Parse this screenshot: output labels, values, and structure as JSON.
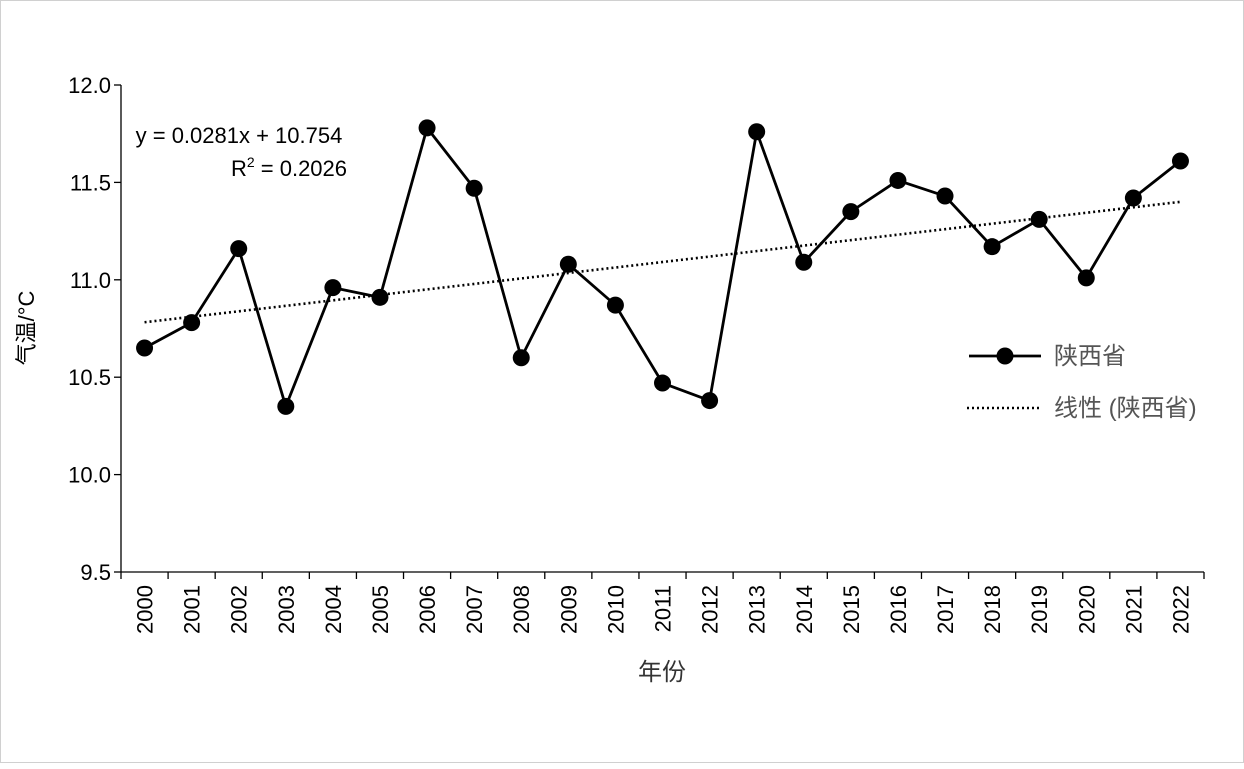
{
  "chart_data": {
    "type": "line",
    "title": "",
    "xlabel": "年份",
    "ylabel": "气温/°C",
    "ylim": [
      9.5,
      12.0
    ],
    "yticks": [
      "9.5",
      "10.0",
      "10.5",
      "11.0",
      "11.5",
      "12.0"
    ],
    "categories": [
      "2000",
      "2001",
      "2002",
      "2003",
      "2004",
      "2005",
      "2006",
      "2007",
      "2008",
      "2009",
      "2010",
      "2011",
      "2012",
      "2013",
      "2014",
      "2015",
      "2016",
      "2017",
      "2018",
      "2019",
      "2020",
      "2021",
      "2022"
    ],
    "series": [
      {
        "name": "陕西省",
        "values": [
          10.65,
          10.78,
          11.16,
          10.35,
          10.96,
          10.91,
          11.78,
          11.47,
          10.6,
          11.08,
          10.87,
          10.47,
          10.38,
          11.76,
          11.09,
          11.35,
          11.51,
          11.43,
          11.17,
          11.31,
          11.01,
          11.42,
          11.61
        ],
        "color": "#000000"
      }
    ],
    "trendline": {
      "name": "线性 (陕西省)",
      "slope": 0.0281,
      "intercept": 10.754,
      "equation_text": "y = 0.0281x + 10.754",
      "r2_label": "R",
      "r2_sup": "2",
      "r2_value_text": " = 0.2026"
    },
    "legend_position": "right",
    "grid": false
  }
}
